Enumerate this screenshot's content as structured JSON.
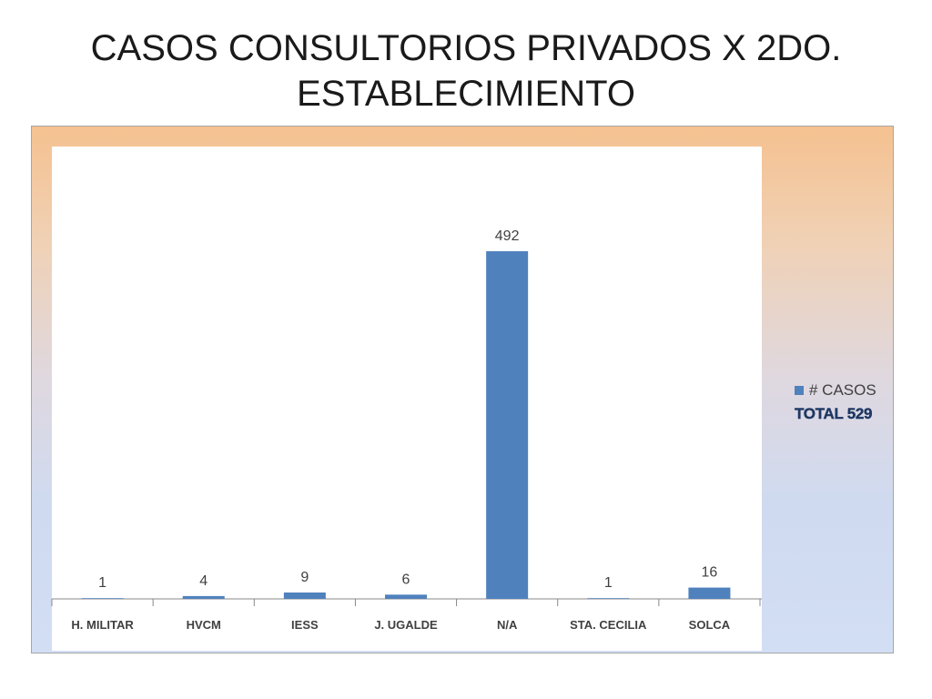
{
  "slide": {
    "title_line1": "CASOS CONSULTORIOS PRIVADOS X 2DO.",
    "title_line2": "ESTABLECIMIENTO"
  },
  "legend": {
    "series_name": "# CASOS",
    "total_text": "TOTAL 529"
  },
  "colors": {
    "bar": "#4f81bd",
    "total_text": "#1f3864",
    "background_top": "#f5c190",
    "background_bottom": "#d2def4"
  },
  "chart_data": {
    "type": "bar",
    "title": "CASOS CONSULTORIOS PRIVADOS X 2DO. ESTABLECIMIENTO",
    "categories": [
      "H. MILITAR",
      "HVCM",
      "IESS",
      "J. UGALDE",
      "N/A",
      "STA. CECILIA",
      "SOLCA"
    ],
    "series": [
      {
        "name": "# CASOS",
        "values": [
          1,
          4,
          9,
          6,
          492,
          1,
          16
        ]
      }
    ],
    "data_labels": [
      "1",
      "4",
      "9",
      "6",
      "492",
      "1",
      "16"
    ],
    "ylim": [
      0,
      550
    ],
    "grid": false,
    "y_axis_visible": false,
    "legend_position": "right"
  }
}
